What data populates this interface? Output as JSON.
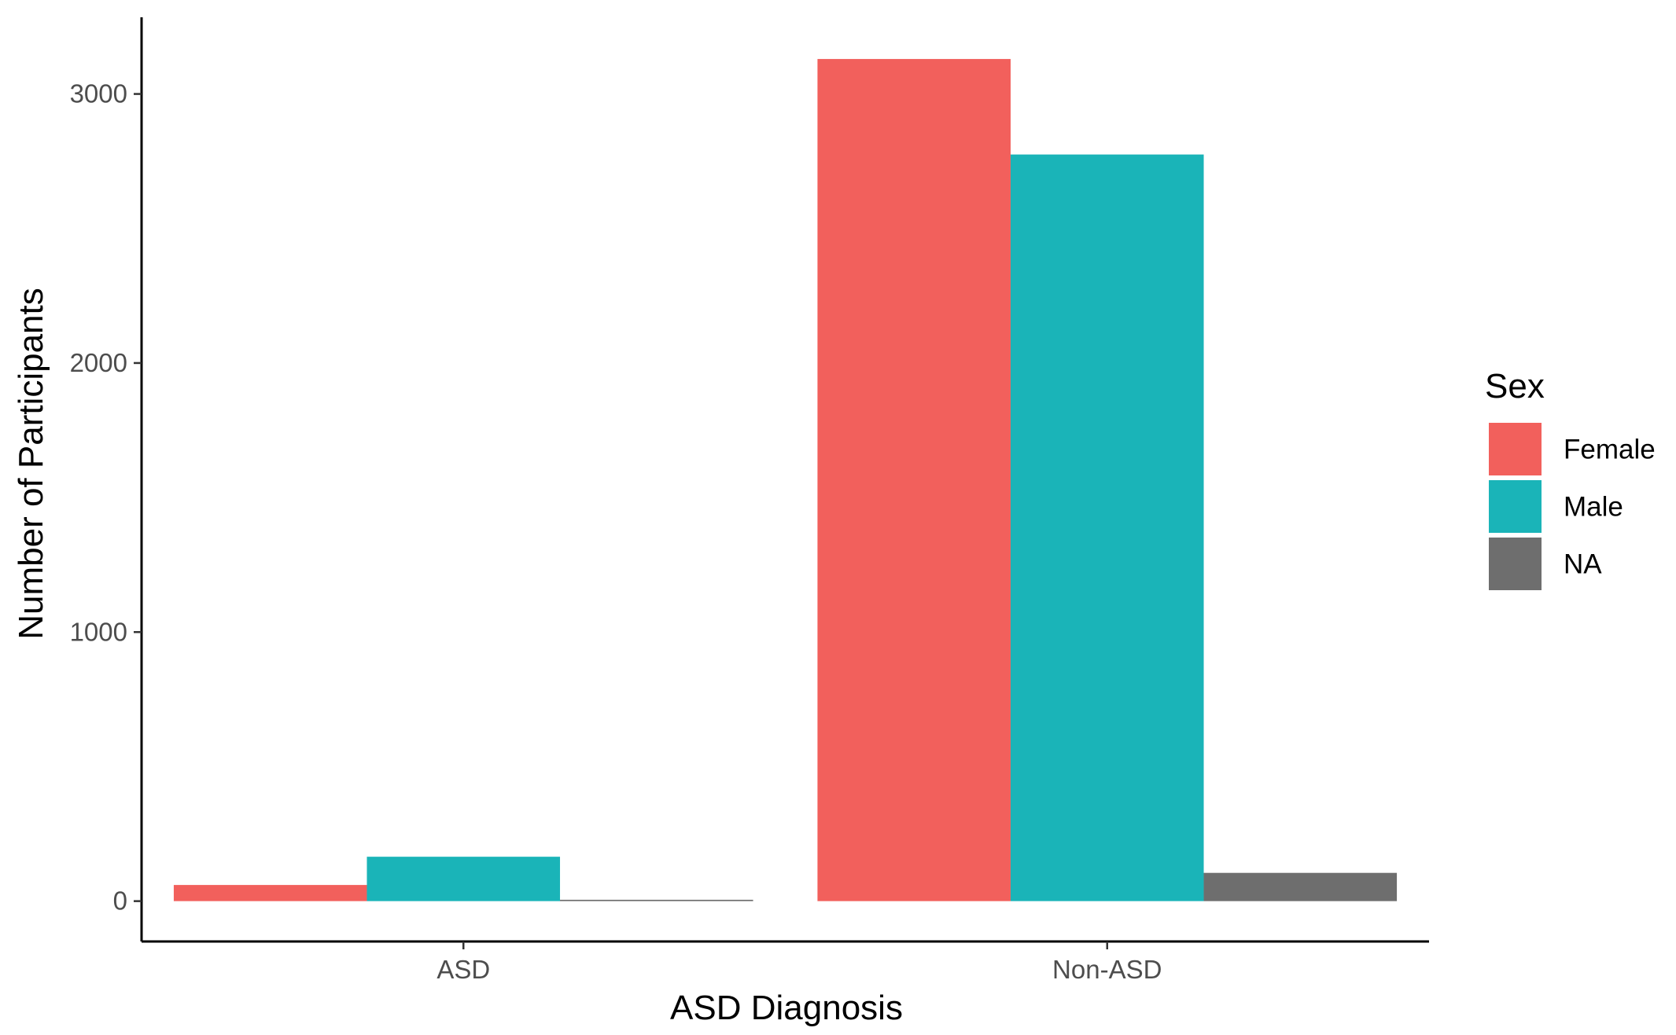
{
  "chart_data": {
    "type": "bar",
    "xlabel": "ASD Diagnosis",
    "ylabel": "Number of Participants",
    "categories": [
      "ASD",
      "Non-ASD"
    ],
    "series": [
      {
        "name": "Female",
        "color": "#F2605C",
        "values": [
          60,
          3130
        ]
      },
      {
        "name": "Male",
        "color": "#1AB4B8",
        "values": [
          165,
          2775
        ]
      },
      {
        "name": "NA",
        "color": "#6E6E6E",
        "values": [
          5,
          105
        ]
      }
    ],
    "ylim": [
      -150,
      3285
    ],
    "yticks": [
      0,
      1000,
      2000,
      3000
    ],
    "legend": {
      "title": "Sex",
      "position": "right"
    },
    "grid": false
  }
}
